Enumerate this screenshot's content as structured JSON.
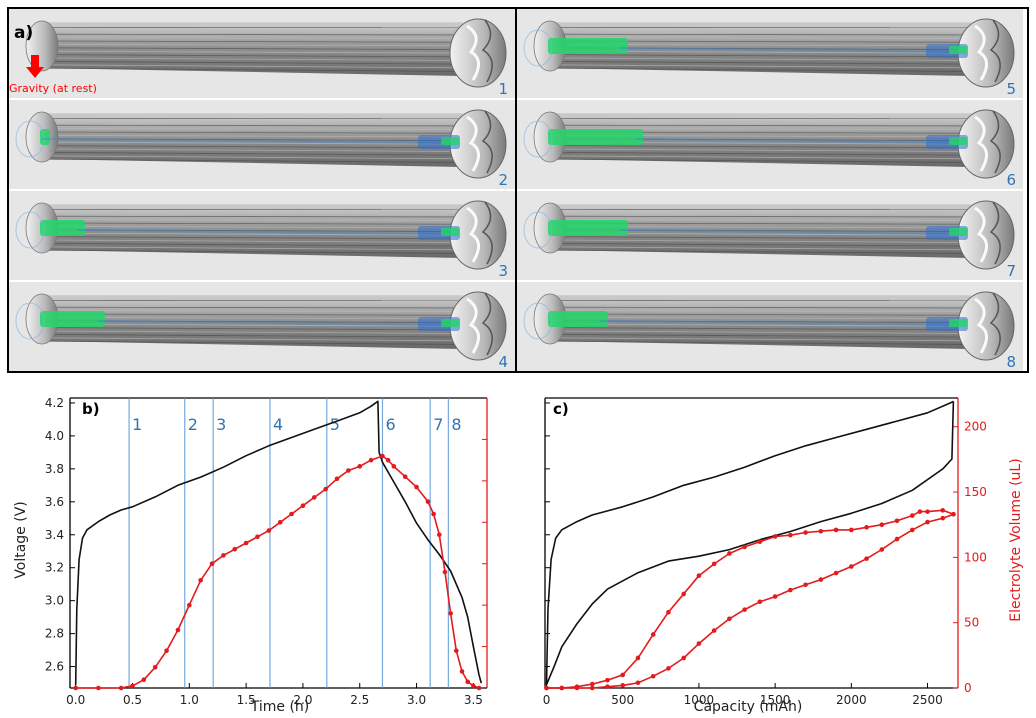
{
  "panels": {
    "a_label": "a)",
    "b_label": "b)",
    "c_label": "c)",
    "gravity_label": "Gravity (at rest)",
    "image_labels": [
      "1",
      "2",
      "3",
      "4",
      "5",
      "6",
      "7",
      "8"
    ]
  },
  "colors": {
    "voltage": "#111111",
    "electrolyte": "#e41a1c",
    "markers": "#5b9bd5",
    "image_bg": "#e6e6e6",
    "electrolyte_fill": "#22d66a",
    "gravity_arrow": "#ff0000"
  },
  "chart_data": [
    {
      "type": "line",
      "panel": "b",
      "xlabel": "Time (h)",
      "ylabel": "Voltage (V)",
      "xlim": [
        -0.05,
        3.62
      ],
      "ylim": [
        2.47,
        4.23
      ],
      "xticks": [
        "0.0",
        "0.5",
        "1.0",
        "1.5",
        "2.0",
        "2.5",
        "3.0",
        "3.5"
      ],
      "xtick_values": [
        0,
        0.5,
        1.0,
        1.5,
        2.0,
        2.5,
        3.0,
        3.5
      ],
      "yticks": [
        "2.6",
        "2.8",
        "3.0",
        "3.2",
        "3.4",
        "3.6",
        "3.8",
        "4.0",
        "4.2"
      ],
      "ytick_values": [
        2.6,
        2.8,
        3.0,
        3.2,
        3.4,
        3.6,
        3.8,
        4.0,
        4.2
      ],
      "right_axis_range": [
        0,
        140
      ],
      "grid": false,
      "markers": [
        {
          "label": "1",
          "x": 0.47
        },
        {
          "label": "2",
          "x": 0.96
        },
        {
          "label": "3",
          "x": 1.21
        },
        {
          "label": "4",
          "x": 1.71
        },
        {
          "label": "5",
          "x": 2.21
        },
        {
          "label": "6",
          "x": 2.7
        },
        {
          "label": "7",
          "x": 3.12
        },
        {
          "label": "8",
          "x": 3.28
        }
      ],
      "series": [
        {
          "axis": "left",
          "x": [
            0.0,
            0.01,
            0.03,
            0.06,
            0.1,
            0.2,
            0.3,
            0.4,
            0.5,
            0.7,
            0.9,
            1.1,
            1.3,
            1.5,
            1.7,
            1.9,
            2.1,
            2.3,
            2.5,
            2.6,
            2.66,
            2.67,
            2.7,
            2.8,
            2.9,
            3.0,
            3.1,
            3.2,
            3.3,
            3.4,
            3.45,
            3.5,
            3.55,
            3.57
          ],
          "y": [
            2.49,
            2.95,
            3.25,
            3.38,
            3.43,
            3.48,
            3.52,
            3.55,
            3.57,
            3.63,
            3.7,
            3.75,
            3.81,
            3.88,
            3.94,
            3.99,
            4.04,
            4.09,
            4.14,
            4.18,
            4.21,
            3.9,
            3.84,
            3.72,
            3.6,
            3.47,
            3.37,
            3.28,
            3.18,
            3.02,
            2.9,
            2.72,
            2.55,
            2.5
          ]
        },
        {
          "axis": "right",
          "x": [
            0.0,
            0.2,
            0.4,
            0.5,
            0.6,
            0.7,
            0.8,
            0.9,
            1.0,
            1.1,
            1.2,
            1.3,
            1.4,
            1.5,
            1.6,
            1.7,
            1.8,
            1.9,
            2.0,
            2.1,
            2.2,
            2.3,
            2.4,
            2.5,
            2.6,
            2.7,
            2.75,
            2.8,
            2.9,
            3.0,
            3.1,
            3.15,
            3.2,
            3.25,
            3.3,
            3.35,
            3.4,
            3.45,
            3.5,
            3.55
          ],
          "y": [
            0,
            0,
            0,
            1,
            4,
            10,
            18,
            28,
            40,
            52,
            60,
            64,
            67,
            70,
            73,
            76,
            80,
            84,
            88,
            92,
            96,
            101,
            105,
            107,
            110,
            112,
            110,
            107,
            102,
            97,
            90,
            84,
            74,
            56,
            36,
            18,
            8,
            3,
            1,
            0
          ]
        }
      ]
    },
    {
      "type": "line",
      "panel": "c",
      "xlabel": "Capacity (mAh)",
      "ylabel": "Electrolyte Volume (uL)",
      "xlim": [
        -10,
        2700
      ],
      "xticks": [
        "0",
        "500",
        "1000",
        "1500",
        "2000",
        "2500"
      ],
      "xtick_values": [
        0,
        500,
        1000,
        1500,
        2000,
        2500
      ],
      "yticks": [
        "0",
        "50",
        "100",
        "150",
        "200"
      ],
      "ytick_values": [
        0,
        50,
        100,
        150,
        200
      ],
      "ylim": [
        0,
        222
      ],
      "left_axis_range": [
        2.47,
        4.23
      ],
      "grid": false,
      "series": [
        {
          "axis": "left",
          "x": [
            0,
            10,
            30,
            60,
            100,
            200,
            300,
            500,
            700,
            900,
            1100,
            1300,
            1500,
            1700,
            1900,
            2100,
            2300,
            2500,
            2650,
            2670
          ],
          "y": [
            2.49,
            2.95,
            3.25,
            3.38,
            3.43,
            3.48,
            3.52,
            3.57,
            3.63,
            3.7,
            3.75,
            3.81,
            3.88,
            3.94,
            3.99,
            4.04,
            4.09,
            4.14,
            4.2,
            4.21
          ]
        },
        {
          "axis": "left",
          "x": [
            2670,
            2660,
            2600,
            2400,
            2200,
            2000,
            1800,
            1600,
            1400,
            1200,
            1000,
            800,
            600,
            400,
            300,
            200,
            100,
            50,
            0
          ],
          "y": [
            4.21,
            3.86,
            3.8,
            3.67,
            3.59,
            3.53,
            3.48,
            3.42,
            3.37,
            3.31,
            3.27,
            3.24,
            3.17,
            3.07,
            2.98,
            2.86,
            2.72,
            2.6,
            2.49
          ]
        },
        {
          "axis": "right",
          "x": [
            0,
            100,
            200,
            300,
            400,
            500,
            600,
            700,
            800,
            900,
            1000,
            1100,
            1200,
            1300,
            1400,
            1500,
            1600,
            1700,
            1800,
            1900,
            2000,
            2100,
            2200,
            2300,
            2400,
            2450,
            2500,
            2600,
            2670
          ],
          "y": [
            0,
            0,
            1,
            3,
            6,
            10,
            23,
            41,
            58,
            72,
            86,
            95,
            103,
            108,
            112,
            116,
            117,
            119,
            120,
            121,
            121,
            123,
            125,
            128,
            132,
            135,
            135,
            136,
            133
          ]
        },
        {
          "axis": "right",
          "x": [
            2670,
            2600,
            2500,
            2400,
            2300,
            2200,
            2100,
            2000,
            1900,
            1800,
            1700,
            1600,
            1500,
            1400,
            1300,
            1200,
            1100,
            1000,
            900,
            800,
            700,
            600,
            500,
            400,
            300,
            200,
            100,
            0
          ],
          "y": [
            133,
            130,
            127,
            121,
            114,
            106,
            99,
            93,
            88,
            83,
            79,
            75,
            70,
            66,
            60,
            53,
            44,
            34,
            23,
            15,
            9,
            4,
            2,
            1,
            0,
            0,
            0,
            0
          ]
        }
      ]
    }
  ]
}
